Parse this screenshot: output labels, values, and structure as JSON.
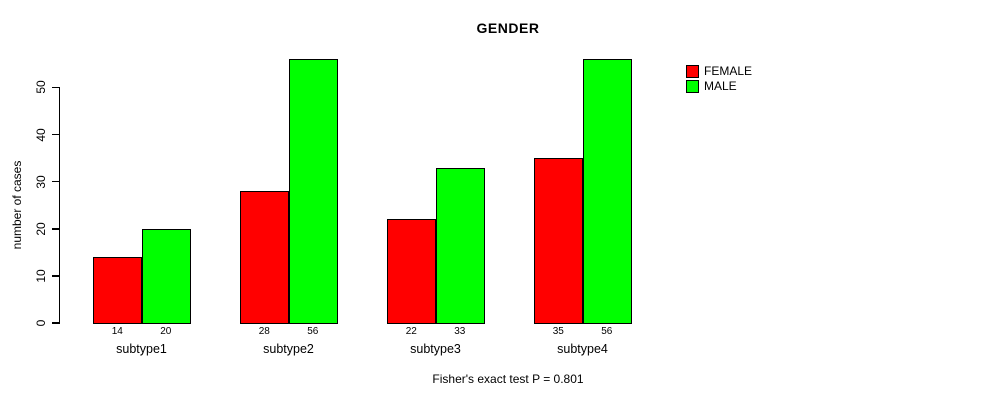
{
  "chart_data": {
    "type": "bar",
    "title": "GENDER",
    "xlabel": "",
    "ylabel": "number of cases",
    "categories": [
      "subtype1",
      "subtype2",
      "subtype3",
      "subtype4"
    ],
    "series": [
      {
        "name": "FEMALE",
        "color": "#FF0000",
        "values": [
          14,
          28,
          22,
          35
        ]
      },
      {
        "name": "MALE",
        "color": "#00FF00",
        "values": [
          20,
          56,
          33,
          56
        ]
      }
    ],
    "yticks": [
      0,
      10,
      20,
      30,
      40,
      50
    ],
    "ylim": [
      0,
      56
    ],
    "grid": false,
    "legend_position": "right",
    "show_value_labels": true,
    "annotation": "Fisher's exact test P = 0.801"
  },
  "colors": {
    "background": "#FFFFFF",
    "axis": "#000000",
    "text": "#000000",
    "female": "#FF0000",
    "male": "#00FF00"
  }
}
